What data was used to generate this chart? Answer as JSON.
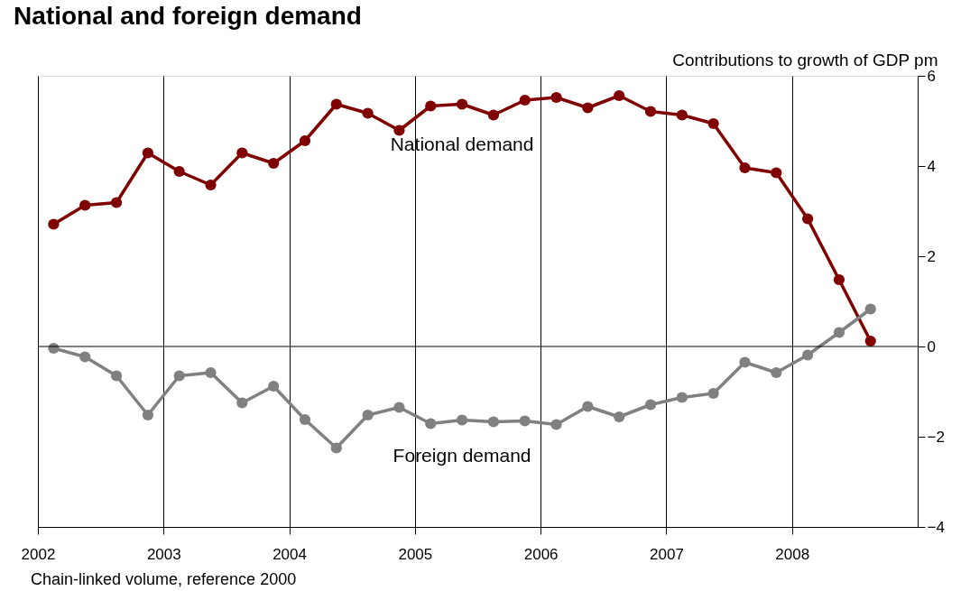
{
  "chart_data": {
    "type": "line",
    "title": "National and foreign demand",
    "ylabel": "Contributions to growth of GDP pm",
    "x": [
      2002.125,
      2002.375,
      2002.625,
      2002.875,
      2003.125,
      2003.375,
      2003.625,
      2003.875,
      2004.125,
      2004.375,
      2004.625,
      2004.875,
      2005.125,
      2005.375,
      2005.625,
      2005.875,
      2006.125,
      2006.375,
      2006.625,
      2006.875,
      2007.125,
      2007.375,
      2007.625,
      2007.875,
      2008.125,
      2008.375,
      2008.625
    ],
    "series": [
      {
        "name": "National demand",
        "color": "#800000",
        "values": [
          2.71,
          3.13,
          3.19,
          4.29,
          3.88,
          3.58,
          4.29,
          4.06,
          4.56,
          5.37,
          5.17,
          4.79,
          5.33,
          5.37,
          5.13,
          5.46,
          5.52,
          5.29,
          5.56,
          5.21,
          5.13,
          4.94,
          3.96,
          3.85,
          2.83,
          1.48,
          0.12
        ]
      },
      {
        "name": "Foreign demand",
        "color": "#808080",
        "values": [
          -0.04,
          -0.23,
          -0.65,
          -1.52,
          -0.65,
          -0.58,
          -1.25,
          -0.88,
          -1.62,
          -2.25,
          -1.52,
          -1.35,
          -1.71,
          -1.63,
          -1.67,
          -1.65,
          -1.73,
          -1.33,
          -1.56,
          -1.29,
          -1.13,
          -1.04,
          -0.35,
          -0.58,
          -0.19,
          0.31,
          0.83
        ]
      }
    ],
    "xlim": [
      2002,
      2009
    ],
    "xticks": [
      2002,
      2003,
      2004,
      2005,
      2006,
      2007,
      2008
    ],
    "ylim": [
      -4,
      6
    ],
    "yticks": [
      -4,
      -2,
      0,
      2,
      4,
      6
    ],
    "ref_lines": [
      {
        "axis": "y",
        "value": 0
      }
    ],
    "grid": "x",
    "marker": "circle",
    "line_style": "solid",
    "legend": false,
    "annotations": [
      "Chain-linked volume, reference 2000"
    ]
  }
}
